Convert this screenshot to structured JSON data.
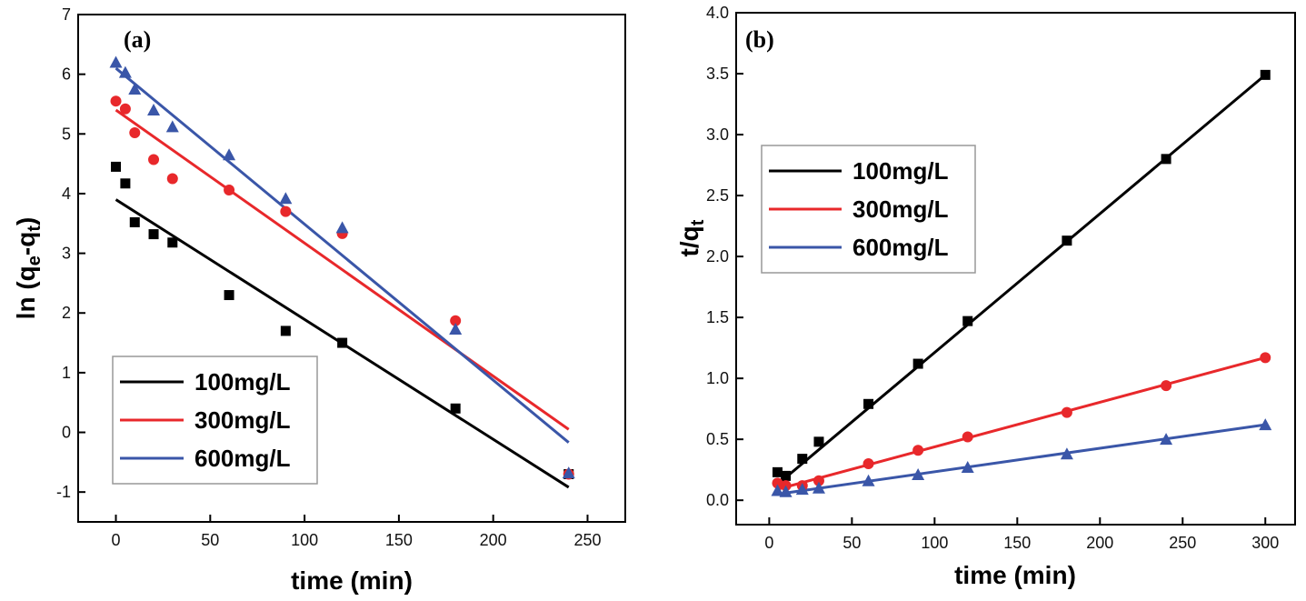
{
  "chart_data": [
    {
      "type": "scatter",
      "panel_label": "(a)",
      "xlabel": "time (min)",
      "ylabel": {
        "prefix": "ln (q",
        "sub1": "e",
        "mid": "-q",
        "sub2": "t",
        "suffix": ")"
      },
      "xlim": [
        -20,
        270
      ],
      "ylim": [
        -1.5,
        7
      ],
      "xticks": [
        0,
        50,
        100,
        150,
        200,
        250
      ],
      "xtick_labels": [
        "0",
        "50",
        "100",
        "150",
        "200",
        "250"
      ],
      "yticks": [
        -1,
        0,
        1,
        2,
        3,
        4,
        5,
        6,
        7
      ],
      "ytick_labels": [
        "-1",
        "0",
        "1",
        "2",
        "3",
        "4",
        "5",
        "6",
        "7"
      ],
      "legend_position": "bottom-left",
      "series": [
        {
          "name": "100mg/L",
          "color": "#000000",
          "marker": "square",
          "x": [
            0,
            5,
            10,
            20,
            30,
            60,
            90,
            120,
            180,
            240
          ],
          "y": [
            4.45,
            4.17,
            3.52,
            3.32,
            3.18,
            2.3,
            1.7,
            1.5,
            0.4,
            -0.7
          ],
          "fit": [
            [
              0,
              3.9
            ],
            [
              240,
              -0.92
            ]
          ]
        },
        {
          "name": "300mg/L",
          "color": "#e8282b",
          "marker": "circle",
          "x": [
            0,
            5,
            10,
            20,
            30,
            60,
            90,
            120,
            180,
            240
          ],
          "y": [
            5.55,
            5.42,
            5.02,
            4.57,
            4.25,
            4.06,
            3.7,
            3.33,
            1.87,
            -0.7
          ],
          "fit": [
            [
              0,
              5.4
            ],
            [
              240,
              0.05
            ]
          ]
        },
        {
          "name": "600mg/L",
          "color": "#3a56a8",
          "marker": "triangle",
          "x": [
            0,
            5,
            10,
            20,
            30,
            60,
            90,
            120,
            180,
            240
          ],
          "y": [
            6.2,
            6.03,
            5.75,
            5.4,
            5.12,
            4.65,
            3.92,
            3.43,
            1.73,
            -0.68
          ],
          "fit": [
            [
              0,
              6.1
            ],
            [
              240,
              -0.17
            ]
          ]
        }
      ]
    },
    {
      "type": "scatter",
      "panel_label": "(b)",
      "xlabel": "time (min)",
      "ylabel": {
        "prefix": "t/q",
        "sub1": "t"
      },
      "xlim": [
        -20,
        318
      ],
      "ylim": [
        -0.2,
        4.0
      ],
      "xticks": [
        0,
        50,
        100,
        150,
        200,
        250,
        300
      ],
      "xtick_labels": [
        "0",
        "50",
        "100",
        "150",
        "200",
        "250",
        "300"
      ],
      "yticks": [
        0,
        0.5,
        1.0,
        1.5,
        2.0,
        2.5,
        3.0,
        3.5,
        4.0
      ],
      "ytick_labels": [
        "0.0",
        "0.5",
        "1.0",
        "1.5",
        "2.0",
        "2.5",
        "3.0",
        "3.5",
        "4.0"
      ],
      "legend_position": "upper-left",
      "series": [
        {
          "name": "100mg/L",
          "color": "#000000",
          "marker": "square",
          "x": [
            5,
            10,
            20,
            30,
            60,
            90,
            120,
            180,
            240,
            300
          ],
          "y": [
            0.23,
            0.2,
            0.34,
            0.48,
            0.79,
            1.12,
            1.47,
            2.13,
            2.8,
            3.49
          ],
          "fit": [
            [
              5,
              0.13
            ],
            [
              300,
              3.49
            ]
          ]
        },
        {
          "name": "300mg/L",
          "color": "#e8282b",
          "marker": "circle",
          "x": [
            5,
            10,
            20,
            30,
            60,
            90,
            120,
            180,
            240,
            300
          ],
          "y": [
            0.14,
            0.12,
            0.12,
            0.16,
            0.3,
            0.41,
            0.52,
            0.72,
            0.94,
            1.17
          ],
          "fit": [
            [
              5,
              0.09
            ],
            [
              300,
              1.17
            ]
          ]
        },
        {
          "name": "600mg/L",
          "color": "#3a56a8",
          "marker": "triangle",
          "x": [
            5,
            10,
            20,
            30,
            60,
            90,
            120,
            180,
            240,
            300
          ],
          "y": [
            0.08,
            0.07,
            0.09,
            0.1,
            0.16,
            0.21,
            0.27,
            0.38,
            0.5,
            0.62
          ],
          "fit": [
            [
              5,
              0.05
            ],
            [
              300,
              0.62
            ]
          ]
        }
      ]
    }
  ]
}
